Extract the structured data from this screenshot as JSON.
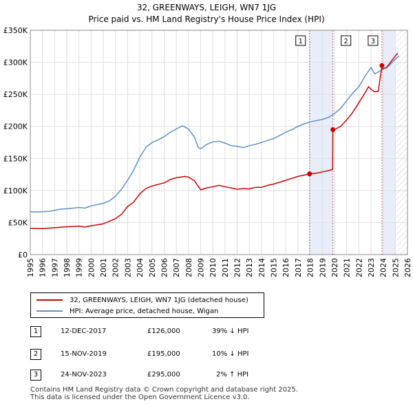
{
  "chart_data": {
    "type": "line",
    "title": "32, GREENWAYS, LEIGH, WN7 1JG",
    "subtitle": "Price paid vs. HM Land Registry's House Price Index (HPI)",
    "xlim": [
      1995,
      2026
    ],
    "ylim": [
      0,
      350000
    ],
    "x_ticks": [
      "1995",
      "1996",
      "1997",
      "1998",
      "1999",
      "2000",
      "2001",
      "2002",
      "2003",
      "2004",
      "2005",
      "2006",
      "2007",
      "2008",
      "2009",
      "2010",
      "2011",
      "2012",
      "2013",
      "2014",
      "2015",
      "2016",
      "2017",
      "2018",
      "2019",
      "2020",
      "2021",
      "2022",
      "2023",
      "2024",
      "2025",
      "2026"
    ],
    "y_ticks": [
      {
        "value": 0,
        "label": "£0"
      },
      {
        "value": 50000,
        "label": "£50K"
      },
      {
        "value": 100000,
        "label": "£100K"
      },
      {
        "value": 150000,
        "label": "£150K"
      },
      {
        "value": 200000,
        "label": "£200K"
      },
      {
        "value": 250000,
        "label": "£250K"
      },
      {
        "value": 300000,
        "label": "£300K"
      },
      {
        "value": 350000,
        "label": "£350K"
      }
    ],
    "grid": true,
    "series": [
      {
        "name": "32, GREENWAYS, LEIGH, WN7 1JG (detached house)",
        "color": "#cc0000",
        "points": [
          [
            1995.0,
            41000
          ],
          [
            1996.0,
            40500
          ],
          [
            1997.0,
            42000
          ],
          [
            1998.0,
            43500
          ],
          [
            1999.0,
            44500
          ],
          [
            1999.5,
            43000
          ],
          [
            2000.0,
            45000
          ],
          [
            2001.0,
            48000
          ],
          [
            2002.0,
            56000
          ],
          [
            2002.5,
            63000
          ],
          [
            2003.0,
            75000
          ],
          [
            2003.5,
            82000
          ],
          [
            2004.0,
            95000
          ],
          [
            2004.5,
            103000
          ],
          [
            2005.0,
            107000
          ],
          [
            2006.0,
            112000
          ],
          [
            2006.5,
            117000
          ],
          [
            2007.0,
            120000
          ],
          [
            2007.7,
            122000
          ],
          [
            2008.0,
            121000
          ],
          [
            2008.5,
            115000
          ],
          [
            2009.0,
            101000
          ],
          [
            2009.5,
            104000
          ],
          [
            2010.0,
            106000
          ],
          [
            2010.5,
            108000
          ],
          [
            2011.0,
            106000
          ],
          [
            2011.5,
            104000
          ],
          [
            2012.0,
            102000
          ],
          [
            2012.5,
            103000
          ],
          [
            2013.0,
            102500
          ],
          [
            2013.5,
            105000
          ],
          [
            2014.0,
            105000
          ],
          [
            2014.5,
            108000
          ],
          [
            2015.0,
            110000
          ],
          [
            2016.0,
            116000
          ],
          [
            2016.5,
            119000
          ],
          [
            2017.0,
            122000
          ],
          [
            2017.5,
            124000
          ],
          [
            2017.95,
            126000
          ],
          [
            2018.5,
            127000
          ],
          [
            2019.0,
            129000
          ],
          [
            2019.5,
            131000
          ],
          [
            2019.85,
            133000
          ],
          [
            2019.87,
            195000
          ],
          [
            2020.0,
            195000
          ],
          [
            2020.5,
            200000
          ],
          [
            2021.0,
            210000
          ],
          [
            2021.5,
            222000
          ],
          [
            2022.0,
            237000
          ],
          [
            2022.5,
            252000
          ],
          [
            2022.8,
            262000
          ],
          [
            2023.0,
            258000
          ],
          [
            2023.3,
            254000
          ],
          [
            2023.6,
            255000
          ],
          [
            2023.9,
            295000
          ],
          [
            2024.0,
            290000
          ],
          [
            2024.3,
            292000
          ],
          [
            2024.6,
            300000
          ],
          [
            2025.0,
            310000
          ],
          [
            2025.2,
            314000
          ]
        ]
      },
      {
        "name": "HPI: Average price, detached house, Wigan",
        "color": "#5b8fc9",
        "points": [
          [
            1995.0,
            67000
          ],
          [
            1995.5,
            66500
          ],
          [
            1996.0,
            67000
          ],
          [
            1996.5,
            67500
          ],
          [
            1997.0,
            69000
          ],
          [
            1997.5,
            71000
          ],
          [
            1998.0,
            71500
          ],
          [
            1998.5,
            72500
          ],
          [
            1999.0,
            73500
          ],
          [
            1999.5,
            72500
          ],
          [
            2000.0,
            76000
          ],
          [
            2000.5,
            78000
          ],
          [
            2001.0,
            80000
          ],
          [
            2001.5,
            84000
          ],
          [
            2002.0,
            91000
          ],
          [
            2002.5,
            102000
          ],
          [
            2003.0,
            116000
          ],
          [
            2003.5,
            132000
          ],
          [
            2004.0,
            152000
          ],
          [
            2004.5,
            167000
          ],
          [
            2005.0,
            175000
          ],
          [
            2005.5,
            179000
          ],
          [
            2006.0,
            184000
          ],
          [
            2006.5,
            191000
          ],
          [
            2007.0,
            196000
          ],
          [
            2007.5,
            201000
          ],
          [
            2008.0,
            196000
          ],
          [
            2008.5,
            183000
          ],
          [
            2008.8,
            167000
          ],
          [
            2009.0,
            165000
          ],
          [
            2009.5,
            172000
          ],
          [
            2010.0,
            176000
          ],
          [
            2010.5,
            177000
          ],
          [
            2011.0,
            174000
          ],
          [
            2011.5,
            170000
          ],
          [
            2012.0,
            169000
          ],
          [
            2012.5,
            167000
          ],
          [
            2013.0,
            170000
          ],
          [
            2013.5,
            172000
          ],
          [
            2014.0,
            175000
          ],
          [
            2014.5,
            178000
          ],
          [
            2015.0,
            181000
          ],
          [
            2015.5,
            186000
          ],
          [
            2016.0,
            191000
          ],
          [
            2016.5,
            195000
          ],
          [
            2017.0,
            200000
          ],
          [
            2017.5,
            204000
          ],
          [
            2018.0,
            207000
          ],
          [
            2018.5,
            209000
          ],
          [
            2019.0,
            211000
          ],
          [
            2019.5,
            214000
          ],
          [
            2020.0,
            220000
          ],
          [
            2020.5,
            228000
          ],
          [
            2021.0,
            240000
          ],
          [
            2021.5,
            252000
          ],
          [
            2022.0,
            262000
          ],
          [
            2022.5,
            278000
          ],
          [
            2023.0,
            292000
          ],
          [
            2023.3,
            282000
          ],
          [
            2023.6,
            285000
          ],
          [
            2024.0,
            289000
          ],
          [
            2024.5,
            295000
          ],
          [
            2025.0,
            305000
          ],
          [
            2025.3,
            310000
          ]
        ]
      }
    ],
    "sales": [
      {
        "id": "1",
        "date": "12-DEC-2017",
        "price": "£126,000",
        "hpi": "39% ↓ HPI",
        "x": 2017.95,
        "value": 126000
      },
      {
        "id": "2",
        "date": "15-NOV-2019",
        "price": "£195,000",
        "hpi": "10% ↓ HPI",
        "x": 2019.87,
        "value": 195000
      },
      {
        "id": "3",
        "date": "24-NOV-2023",
        "price": "£295,000",
        "hpi": "2% ↑ HPI",
        "x": 2023.9,
        "value": 295000
      }
    ],
    "highlight_ranges": [
      [
        2017.95,
        2019.87
      ],
      [
        2023.9,
        2025.0
      ]
    ],
    "future_from": 2025.0
  },
  "footer": {
    "line1": "Contains HM Land Registry data © Crown copyright and database right 2025.",
    "line2": "This data is licensed under the Open Government Licence v3.0."
  }
}
